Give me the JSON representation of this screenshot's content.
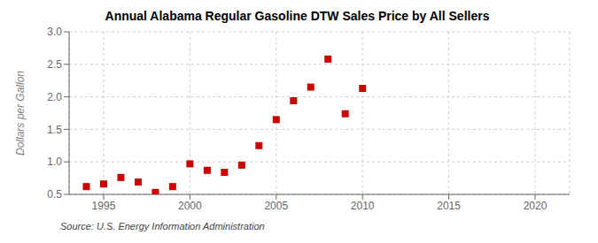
{
  "chart_data": {
    "type": "scatter",
    "title": "Annual Alabama Regular Gasoline DTW Sales Price by All Sellers",
    "ylabel": "Dollars per Gallon",
    "annotations": [
      "Source: U.S. Energy Information Administration"
    ],
    "x": [
      1994,
      1995,
      1996,
      1997,
      1998,
      1999,
      2000,
      2001,
      2002,
      2003,
      2004,
      2005,
      2006,
      2007,
      2008,
      2009,
      2010
    ],
    "values": [
      0.62,
      0.66,
      0.76,
      0.69,
      0.53,
      0.62,
      0.97,
      0.87,
      0.84,
      0.95,
      1.25,
      1.65,
      1.94,
      2.15,
      2.58,
      1.74,
      2.13
    ],
    "color": "#cc0000",
    "marker": "square",
    "xlim": [
      1993,
      2022
    ],
    "ylim": [
      0.5,
      3.0
    ],
    "xticks": [
      1995,
      2000,
      2005,
      2010,
      2015,
      2020
    ],
    "yticks": [
      0.5,
      {
        "value": 1,
        "label": "1.0"
      },
      1.5,
      {
        "value": 2,
        "label": "2.0"
      },
      2.5,
      {
        "value": 3,
        "label": "3.0"
      }
    ],
    "grid": true
  }
}
